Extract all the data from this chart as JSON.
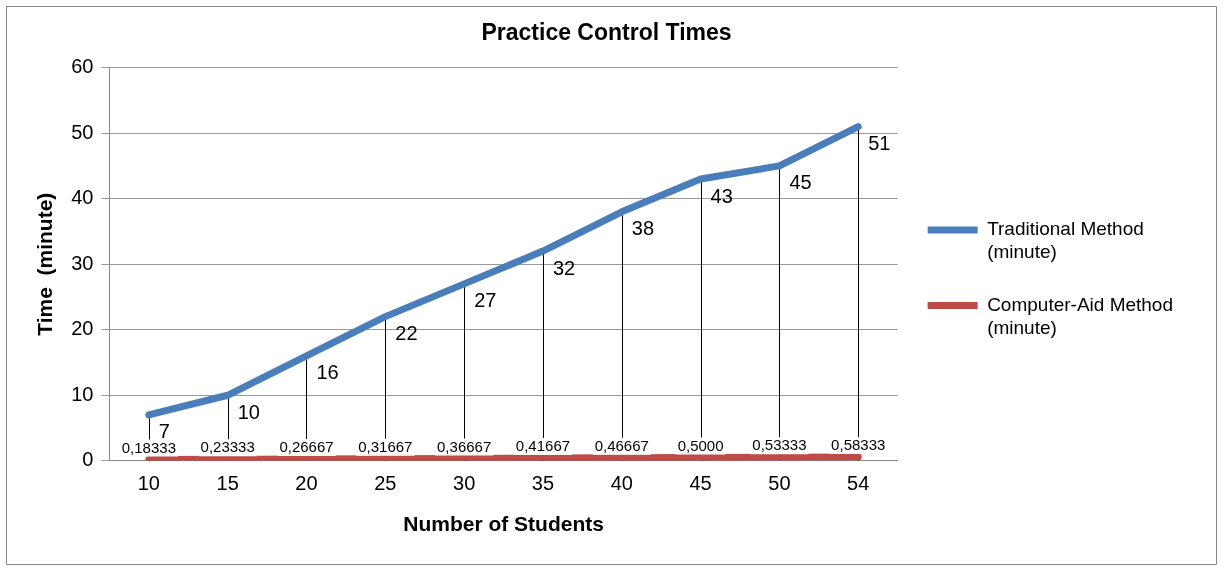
{
  "chart_data": {
    "type": "line",
    "title": "Practice Control Times",
    "xlabel": "Number of Students",
    "ylabel": "Time  (minute)",
    "categories": [
      "10",
      "15",
      "20",
      "25",
      "30",
      "35",
      "40",
      "45",
      "50",
      "54"
    ],
    "series": [
      {
        "name": "Traditional Method (minute)",
        "color": "#4a7ebb",
        "values": [
          7,
          10,
          16,
          22,
          27,
          32,
          38,
          43,
          45,
          51
        ]
      },
      {
        "name": "Computer-Aid Method (minute)",
        "color": "#be4b48",
        "values": [
          0.18333,
          0.23333,
          0.26667,
          0.31667,
          0.36667,
          0.41667,
          0.46667,
          0.5,
          0.53333,
          0.58333
        ],
        "value_labels": [
          "0,18333",
          "0,23333",
          "0,26667",
          "0,31667",
          "0,36667",
          "0,41667",
          "0,46667",
          "0,5000",
          "0,53333",
          "0,58333"
        ]
      }
    ],
    "ylim": [
      0,
      60
    ],
    "yticks": [
      0,
      10,
      20,
      30,
      40,
      50,
      60
    ],
    "grid": true,
    "legend": "right",
    "marker": "none",
    "data_labels": true
  }
}
